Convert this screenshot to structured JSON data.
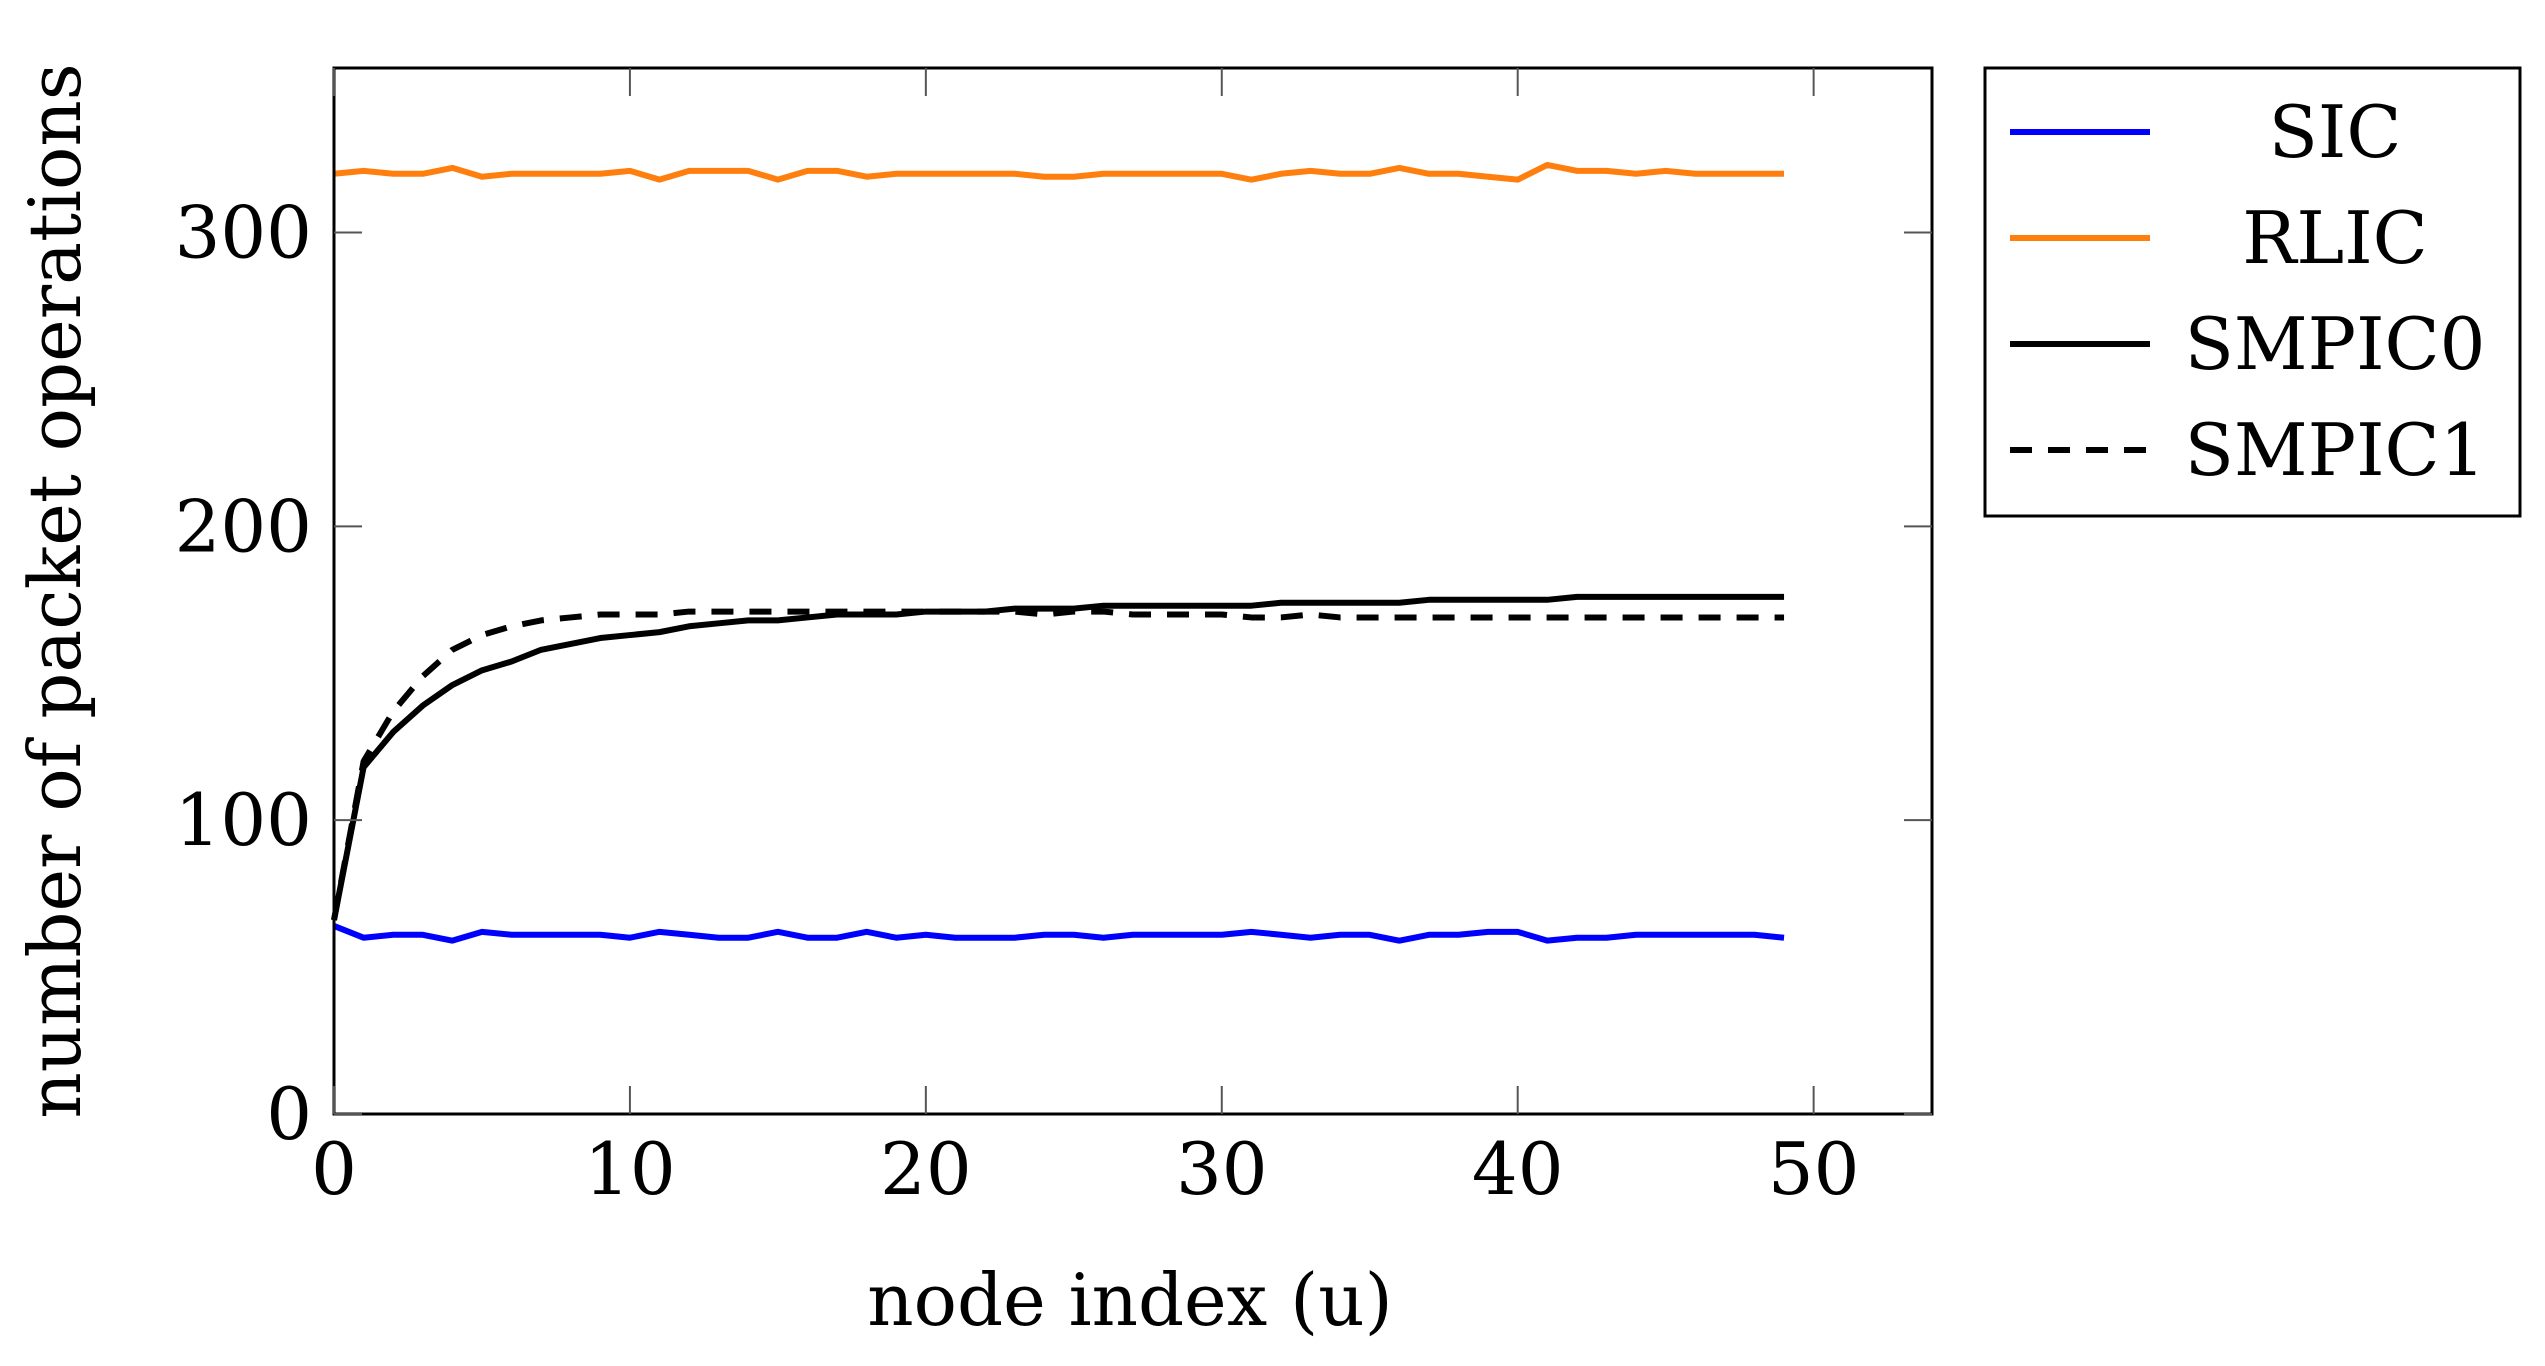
{
  "chart_data": {
    "type": "line",
    "title": "",
    "xlabel": "node index (u)",
    "ylabel": "number of packet operations",
    "xlim": [
      0,
      54
    ],
    "ylim": [
      0,
      356
    ],
    "grid": false,
    "x_ticks": [
      0,
      10,
      20,
      30,
      40,
      50
    ],
    "y_ticks": [
      0,
      100,
      200,
      300
    ],
    "legend_position": "outside-right-top",
    "x": [
      0,
      1,
      2,
      3,
      4,
      5,
      6,
      7,
      8,
      9,
      10,
      11,
      12,
      13,
      14,
      15,
      16,
      17,
      18,
      19,
      20,
      21,
      22,
      23,
      24,
      25,
      26,
      27,
      28,
      29,
      30,
      31,
      32,
      33,
      34,
      35,
      36,
      37,
      38,
      39,
      40,
      41,
      42,
      43,
      44,
      45,
      46,
      47,
      48,
      49
    ],
    "series": [
      {
        "name": "SIC",
        "color": "#0000ff",
        "style": "solid",
        "values": [
          64,
          60,
          61,
          61,
          59,
          62,
          61,
          61,
          61,
          61,
          60,
          62,
          61,
          60,
          60,
          62,
          60,
          60,
          62,
          60,
          61,
          60,
          60,
          60,
          61,
          61,
          60,
          61,
          61,
          61,
          61,
          62,
          61,
          60,
          61,
          61,
          59,
          61,
          61,
          62,
          62,
          59,
          60,
          60,
          61,
          61,
          61,
          61,
          61,
          60
        ]
      },
      {
        "name": "RLIC",
        "color": "#ff7f0e",
        "style": "solid",
        "values": [
          320,
          321,
          320,
          320,
          322,
          319,
          320,
          320,
          320,
          320,
          321,
          318,
          321,
          321,
          321,
          318,
          321,
          321,
          319,
          320,
          320,
          320,
          320,
          320,
          319,
          319,
          320,
          320,
          320,
          320,
          320,
          318,
          320,
          321,
          320,
          320,
          322,
          320,
          320,
          319,
          318,
          323,
          321,
          321,
          320,
          321,
          320,
          320,
          320,
          320
        ]
      },
      {
        "name": "SMPIC0",
        "color": "#000000",
        "style": "solid",
        "values": [
          66,
          118,
          130,
          139,
          146,
          151,
          154,
          158,
          160,
          162,
          163,
          164,
          166,
          167,
          168,
          168,
          169,
          170,
          170,
          170,
          171,
          171,
          171,
          172,
          172,
          172,
          173,
          173,
          173,
          173,
          173,
          173,
          174,
          174,
          174,
          174,
          174,
          175,
          175,
          175,
          175,
          175,
          176,
          176,
          176,
          176,
          176,
          176,
          176,
          176
        ]
      },
      {
        "name": "SMPIC1",
        "color": "#000000",
        "style": "dashed",
        "values": [
          66,
          120,
          137,
          149,
          158,
          163,
          166,
          168,
          169,
          170,
          170,
          170,
          171,
          171,
          171,
          171,
          171,
          171,
          171,
          171,
          171,
          171,
          171,
          171,
          170,
          171,
          171,
          170,
          170,
          170,
          170,
          169,
          169,
          170,
          169,
          169,
          169,
          169,
          169,
          169,
          169,
          169,
          169,
          169,
          169,
          169,
          169,
          169,
          169,
          169
        ]
      }
    ]
  }
}
